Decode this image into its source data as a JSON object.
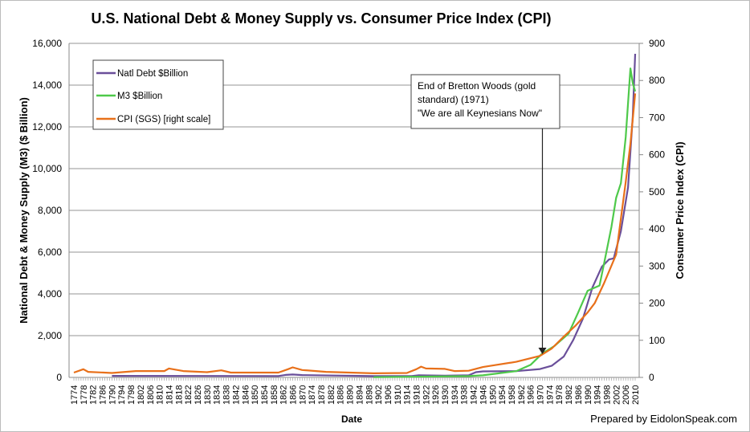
{
  "chart_data": {
    "type": "line",
    "title": "U.S. National Debt & Money Supply vs. Consumer Price Index (CPI)",
    "xlabel": "Date",
    "ylabel": "National Debt & Money Supply (M3)  ($ Billion)",
    "y2label": "Consumer Price Index (CPI)",
    "xlim": [
      1774,
      2010
    ],
    "ylim": [
      0,
      16000
    ],
    "y2lim": [
      0,
      900
    ],
    "x_tick_step": 4,
    "y_ticks": [
      "0",
      "2,000",
      "4,000",
      "6,000",
      "8,000",
      "10,000",
      "12,000",
      "14,000",
      "16,000"
    ],
    "y2_ticks": [
      "0",
      "100",
      "200",
      "300",
      "400",
      "500",
      "600",
      "700",
      "800",
      "900"
    ],
    "grid": true,
    "legend_position": "top-left",
    "series": [
      {
        "name": "Natl Debt $Billion",
        "axis": "left",
        "color": "#6a4f9a",
        "x": [
          1790,
          1860,
          1863,
          1866,
          1870,
          1900,
          1916,
          1919,
          1930,
          1940,
          1943,
          1946,
          1960,
          1970,
          1975,
          1980,
          1984,
          1988,
          1992,
          1996,
          1999,
          2001,
          2004,
          2007,
          2009,
          2010
        ],
        "y": [
          75,
          65,
          120,
          140,
          110,
          60,
          60,
          100,
          80,
          100,
          250,
          290,
          300,
          400,
          560,
          1000,
          1800,
          2800,
          4300,
          5300,
          5650,
          5700,
          7000,
          9100,
          12500,
          15500
        ]
      },
      {
        "name": "M3 $Billion",
        "axis": "left",
        "color": "#4ec94a",
        "x": [
          1900,
          1940,
          1946,
          1960,
          1966,
          1971,
          1976,
          1982,
          1986,
          1990,
          1993,
          1995,
          1997,
          2000,
          2002,
          2004,
          2006,
          2008,
          2009,
          2010
        ],
        "y": [
          10,
          60,
          100,
          300,
          600,
          1150,
          1500,
          2100,
          3100,
          4150,
          4300,
          4400,
          5500,
          7200,
          8600,
          9300,
          11500,
          14800,
          14100,
          13700
        ]
      },
      {
        "name": "CPI (SGS) [right scale]",
        "axis": "right",
        "color": "#e8701a",
        "x": [
          1774,
          1778,
          1780,
          1790,
          1800,
          1812,
          1814,
          1820,
          1830,
          1836,
          1840,
          1850,
          1860,
          1864,
          1866,
          1870,
          1880,
          1900,
          1914,
          1918,
          1920,
          1922,
          1930,
          1934,
          1940,
          1946,
          1950,
          1960,
          1970,
          1975,
          1980,
          1985,
          1990,
          1993,
          1997,
          2002,
          2006,
          2008,
          2010
        ],
        "y": [
          13,
          22,
          15,
          12,
          17,
          17,
          24,
          17,
          14,
          19,
          13,
          13,
          13,
          22,
          27,
          20,
          15,
          11,
          12,
          22,
          29,
          24,
          23,
          17,
          18,
          28,
          32,
          42,
          58,
          78,
          110,
          140,
          175,
          200,
          255,
          331,
          526,
          630,
          765
        ]
      }
    ],
    "annotation": {
      "lines": [
        "End of Bretton Woods (gold",
        "standard) (1971)",
        "\"We are all Keynesians Now\""
      ],
      "x": 1971
    },
    "footer": "Prepared by EidolonSpeak.com"
  }
}
